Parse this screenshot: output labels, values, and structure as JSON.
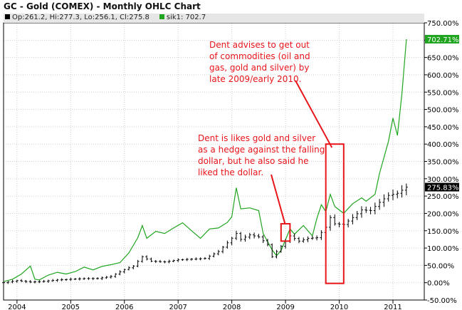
{
  "title": "GC - Gold (COMEX) - Monthly OHLC Chart",
  "legend": [
    {
      "label": "Op:261.2, Hi:277.3, Lo:256.1, Cl:275.8",
      "color": "#000000"
    },
    {
      "label": "sik1: 702.7",
      "color": "#1fa51f"
    }
  ],
  "annotations": {
    "top": [
      "Dent advises to get out",
      "of commodities (oil and",
      "gas, gold and silver) by",
      "late 2009/early 2010."
    ],
    "mid": [
      "Dent is likes gold and silver",
      "as a hedge against the falling",
      "dollar, but he also said he",
      "liked the dollar."
    ]
  },
  "colors": {
    "gold": "#000000",
    "silver": "#1fa51f",
    "annotation": "#e8151b",
    "grid": "#cfcfcf"
  },
  "chart_data": {
    "type": "line",
    "title": "GC - Gold (COMEX) - Monthly OHLC Chart",
    "x_unit": "date",
    "x_ticks": [
      "2004",
      "2005",
      "2006",
      "2007",
      "2008",
      "2009",
      "2010",
      "2011"
    ],
    "y_ticks": [
      "750.00%",
      "700.00%",
      "650.00%",
      "600.00%",
      "550.00%",
      "500.00%",
      "450.00%",
      "400.00%",
      "350.00%",
      "300.00%",
      "250.00%",
      "200.00%",
      "150.00%",
      "100.00%",
      "50.00%",
      "0.00%",
      "-50.00%"
    ],
    "ylim": [
      -50,
      750
    ],
    "xlim": [
      "2003-10",
      "2011-08"
    ],
    "last_labels": {
      "silver": "702.71%",
      "gold": "275.83%"
    },
    "series": [
      {
        "key": "silver",
        "points": [
          [
            "2003-10",
            3
          ],
          [
            "2003-12",
            10
          ],
          [
            "2004-02",
            25
          ],
          [
            "2004-04",
            48
          ],
          [
            "2004-05",
            10
          ],
          [
            "2004-06",
            8
          ],
          [
            "2004-08",
            22
          ],
          [
            "2004-10",
            30
          ],
          [
            "2004-12",
            25
          ],
          [
            "2005-02",
            32
          ],
          [
            "2005-04",
            45
          ],
          [
            "2005-06",
            37
          ],
          [
            "2005-08",
            47
          ],
          [
            "2005-10",
            52
          ],
          [
            "2005-12",
            58
          ],
          [
            "2006-02",
            86
          ],
          [
            "2006-04",
            130
          ],
          [
            "2006-05",
            165
          ],
          [
            "2006-06",
            128
          ],
          [
            "2006-08",
            148
          ],
          [
            "2006-10",
            142
          ],
          [
            "2006-12",
            158
          ],
          [
            "2007-02",
            173
          ],
          [
            "2007-04",
            150
          ],
          [
            "2007-06",
            128
          ],
          [
            "2007-08",
            155
          ],
          [
            "2007-10",
            158
          ],
          [
            "2007-12",
            174
          ],
          [
            "2008-01",
            190
          ],
          [
            "2008-02",
            274
          ],
          [
            "2008-03",
            213
          ],
          [
            "2008-05",
            216
          ],
          [
            "2008-07",
            208
          ],
          [
            "2008-08",
            142
          ],
          [
            "2008-10",
            95
          ],
          [
            "2008-11",
            78
          ],
          [
            "2008-12",
            93
          ],
          [
            "2009-02",
            155
          ],
          [
            "2009-03",
            140
          ],
          [
            "2009-05",
            165
          ],
          [
            "2009-07",
            135
          ],
          [
            "2009-08",
            185
          ],
          [
            "2009-09",
            225
          ],
          [
            "2009-10",
            205
          ],
          [
            "2009-11",
            255
          ],
          [
            "2009-12",
            220
          ],
          [
            "2010-02",
            200
          ],
          [
            "2010-04",
            228
          ],
          [
            "2010-06",
            245
          ],
          [
            "2010-07",
            235
          ],
          [
            "2010-09",
            255
          ],
          [
            "2010-10",
            315
          ],
          [
            "2010-12",
            408
          ],
          [
            "2011-01",
            475
          ],
          [
            "2011-02",
            425
          ],
          [
            "2011-03",
            545
          ],
          [
            "2011-04",
            702.7
          ]
        ]
      },
      {
        "key": "gold",
        "points": [
          [
            "2003-10",
            0
          ],
          [
            "2004-01",
            6
          ],
          [
            "2004-04",
            2
          ],
          [
            "2004-07",
            4
          ],
          [
            "2004-10",
            8
          ],
          [
            "2005-01",
            10
          ],
          [
            "2005-04",
            12
          ],
          [
            "2005-07",
            12
          ],
          [
            "2005-10",
            18
          ],
          [
            "2006-01",
            38
          ],
          [
            "2006-03",
            48
          ],
          [
            "2006-05",
            75
          ],
          [
            "2006-07",
            62
          ],
          [
            "2006-10",
            60
          ],
          [
            "2007-01",
            66
          ],
          [
            "2007-04",
            68
          ],
          [
            "2007-07",
            70
          ],
          [
            "2007-10",
            90
          ],
          [
            "2007-12",
            115
          ],
          [
            "2008-02",
            142
          ],
          [
            "2008-03",
            125
          ],
          [
            "2008-05",
            138
          ],
          [
            "2008-07",
            132
          ],
          [
            "2008-09",
            110
          ],
          [
            "2008-10",
            75
          ],
          [
            "2008-12",
            105
          ],
          [
            "2009-02",
            135
          ],
          [
            "2009-04",
            120
          ],
          [
            "2009-06",
            128
          ],
          [
            "2009-08",
            130
          ],
          [
            "2009-10",
            160
          ],
          [
            "2009-11",
            188
          ],
          [
            "2009-12",
            170
          ],
          [
            "2010-02",
            168
          ],
          [
            "2010-04",
            188
          ],
          [
            "2010-06",
            210
          ],
          [
            "2010-08",
            208
          ],
          [
            "2010-10",
            232
          ],
          [
            "2010-12",
            252
          ],
          [
            "2011-02",
            258
          ],
          [
            "2011-04",
            275.8
          ]
        ]
      }
    ]
  }
}
